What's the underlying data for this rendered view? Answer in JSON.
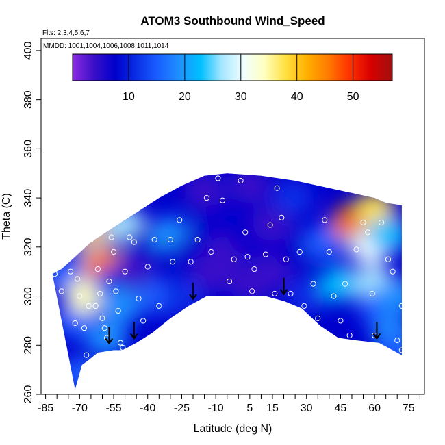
{
  "chart_data": {
    "type": "heatmap",
    "title": "ATOM3 Southbound Wind_Speed",
    "flights_label": "Flts: 2,3,4,5,6,7",
    "dates_label": "MMDD: 1001,1004,1006,1008,1011,1014",
    "xlabel": "Latitude (deg N)",
    "ylabel": "Theta (C)",
    "xlim": [
      -87,
      82
    ],
    "ylim": [
      260,
      405
    ],
    "x_ticks": [
      -85,
      -70,
      -55,
      -40,
      -25,
      -10,
      5,
      15,
      30,
      45,
      60,
      75
    ],
    "x_minor_ticks": [
      -80,
      -75,
      -65,
      -60,
      -50,
      -45,
      -35,
      -30,
      -20,
      -15,
      -5,
      0,
      10,
      20,
      25,
      35,
      40,
      50,
      55,
      65,
      70,
      80
    ],
    "y_ticks": [
      260,
      280,
      300,
      320,
      340,
      360,
      380,
      400
    ],
    "grid": false,
    "colorbar": {
      "range": [
        0,
        57
      ],
      "ticks": [
        10,
        20,
        30,
        40,
        50
      ],
      "colors": [
        "#8a2be2",
        "#3a0fc8",
        "#0000cd",
        "#0a2fe6",
        "#1a5fff",
        "#1e90ff",
        "#00bfff",
        "#a6e6ff",
        "#f0ffff",
        "#ffffc0",
        "#ffe040",
        "#ffb000",
        "#ff7a00",
        "#ff3000",
        "#d70000",
        "#a01010"
      ]
    },
    "profile_bottom": [
      [
        -72,
        262
      ],
      [
        -69,
        272
      ],
      [
        -66,
        274
      ],
      [
        -62,
        277
      ],
      [
        -55,
        278
      ],
      [
        -51,
        278
      ],
      [
        -45,
        281
      ],
      [
        -38,
        285
      ],
      [
        -30,
        291
      ],
      [
        -22,
        296
      ],
      [
        -14,
        300
      ],
      [
        0,
        300
      ],
      [
        12,
        300
      ],
      [
        20,
        298
      ],
      [
        28,
        295
      ],
      [
        36,
        288
      ],
      [
        44,
        283
      ],
      [
        52,
        282
      ],
      [
        62,
        281
      ],
      [
        72,
        276
      ]
    ],
    "profile_top": [
      [
        72,
        337
      ],
      [
        65,
        338
      ],
      [
        60,
        340
      ],
      [
        50,
        342
      ],
      [
        40,
        344
      ],
      [
        25,
        347
      ],
      [
        10,
        349
      ],
      [
        -5,
        350
      ],
      [
        -15,
        349
      ],
      [
        -25,
        345
      ],
      [
        -35,
        340
      ],
      [
        -45,
        334
      ],
      [
        -55,
        328
      ],
      [
        -65,
        322
      ],
      [
        -72,
        316
      ],
      [
        -78,
        311
      ],
      [
        -82,
        309
      ]
    ],
    "field_points": [
      {
        "lat": -82,
        "theta": 309,
        "speed": 12
      },
      {
        "lat": -75,
        "theta": 308,
        "speed": 14
      },
      {
        "lat": -72,
        "theta": 290,
        "speed": 15
      },
      {
        "lat": -70,
        "theta": 268,
        "speed": 14
      },
      {
        "lat": -67,
        "theta": 300,
        "speed": 35
      },
      {
        "lat": -65,
        "theta": 325,
        "speed": 40
      },
      {
        "lat": -62,
        "theta": 316,
        "speed": 22
      },
      {
        "lat": -60,
        "theta": 313,
        "speed": 44
      },
      {
        "lat": -58,
        "theta": 283,
        "speed": 20
      },
      {
        "lat": -55,
        "theta": 305,
        "speed": 12
      },
      {
        "lat": -52,
        "theta": 296,
        "speed": 18
      },
      {
        "lat": -50,
        "theta": 329,
        "speed": 25
      },
      {
        "lat": -46,
        "theta": 310,
        "speed": 2
      },
      {
        "lat": -40,
        "theta": 322,
        "speed": 9
      },
      {
        "lat": -35,
        "theta": 300,
        "speed": 14
      },
      {
        "lat": -30,
        "theta": 325,
        "speed": 20
      },
      {
        "lat": -25,
        "theta": 300,
        "speed": 10
      },
      {
        "lat": -20,
        "theta": 318,
        "speed": 6
      },
      {
        "lat": -15,
        "theta": 343,
        "speed": 4
      },
      {
        "lat": -10,
        "theta": 330,
        "speed": 8
      },
      {
        "lat": -12,
        "theta": 309,
        "speed": 3
      },
      {
        "lat": -5,
        "theta": 318,
        "speed": 3
      },
      {
        "lat": 5,
        "theta": 345,
        "speed": 2
      },
      {
        "lat": 5,
        "theta": 324,
        "speed": 6
      },
      {
        "lat": 5,
        "theta": 305,
        "speed": 5
      },
      {
        "lat": 15,
        "theta": 330,
        "speed": 4
      },
      {
        "lat": 15,
        "theta": 310,
        "speed": 3
      },
      {
        "lat": 24,
        "theta": 340,
        "speed": 10
      },
      {
        "lat": 25,
        "theta": 318,
        "speed": 6
      },
      {
        "lat": 30,
        "theta": 300,
        "speed": 12
      },
      {
        "lat": 38,
        "theta": 322,
        "speed": 14
      },
      {
        "lat": 45,
        "theta": 305,
        "speed": 24
      },
      {
        "lat": 50,
        "theta": 330,
        "speed": 45
      },
      {
        "lat": 56,
        "theta": 332,
        "speed": 55
      },
      {
        "lat": 60,
        "theta": 335,
        "speed": 38
      },
      {
        "lat": 58,
        "theta": 320,
        "speed": 30
      },
      {
        "lat": 60,
        "theta": 305,
        "speed": 28
      },
      {
        "lat": 62,
        "theta": 295,
        "speed": 16
      },
      {
        "lat": 66,
        "theta": 325,
        "speed": 22
      },
      {
        "lat": 68,
        "theta": 284,
        "speed": 18
      },
      {
        "lat": 70,
        "theta": 300,
        "speed": 20
      },
      {
        "lat": 72,
        "theta": 278,
        "speed": 14
      }
    ],
    "observations": [
      {
        "lat": -81,
        "theta": 309
      },
      {
        "lat": -78,
        "theta": 302
      },
      {
        "lat": -74,
        "theta": 310
      },
      {
        "lat": -72,
        "theta": 289
      },
      {
        "lat": -71,
        "theta": 307
      },
      {
        "lat": -70,
        "theta": 300
      },
      {
        "lat": -69,
        "theta": 266
      },
      {
        "lat": -68,
        "theta": 287
      },
      {
        "lat": -67,
        "theta": 276
      },
      {
        "lat": -66,
        "theta": 296
      },
      {
        "lat": -65,
        "theta": 323
      },
      {
        "lat": -64,
        "theta": 274
      },
      {
        "lat": -63,
        "theta": 296
      },
      {
        "lat": -62,
        "theta": 311
      },
      {
        "lat": -61,
        "theta": 301
      },
      {
        "lat": -60,
        "theta": 291
      },
      {
        "lat": -59,
        "theta": 287
      },
      {
        "lat": -58,
        "theta": 283
      },
      {
        "lat": -57,
        "theta": 306
      },
      {
        "lat": -56,
        "theta": 324
      },
      {
        "lat": -55,
        "theta": 318
      },
      {
        "lat": -54,
        "theta": 302
      },
      {
        "lat": -53,
        "theta": 294
      },
      {
        "lat": -52,
        "theta": 281
      },
      {
        "lat": -51,
        "theta": 279
      },
      {
        "lat": -50,
        "theta": 310
      },
      {
        "lat": -48,
        "theta": 324
      },
      {
        "lat": -46,
        "theta": 322
      },
      {
        "lat": -44,
        "theta": 299
      },
      {
        "lat": -42,
        "theta": 290
      },
      {
        "lat": -40,
        "theta": 312
      },
      {
        "lat": -37,
        "theta": 323
      },
      {
        "lat": -35,
        "theta": 296
      },
      {
        "lat": -30,
        "theta": 323
      },
      {
        "lat": -29,
        "theta": 314
      },
      {
        "lat": -26,
        "theta": 331
      },
      {
        "lat": -24,
        "theta": 293
      },
      {
        "lat": -21,
        "theta": 314
      },
      {
        "lat": -18,
        "theta": 323
      },
      {
        "lat": -14,
        "theta": 340
      },
      {
        "lat": -12,
        "theta": 318
      },
      {
        "lat": -9,
        "theta": 348
      },
      {
        "lat": -7,
        "theta": 339
      },
      {
        "lat": -4,
        "theta": 306
      },
      {
        "lat": -2,
        "theta": 315
      },
      {
        "lat": 1,
        "theta": 347
      },
      {
        "lat": 3,
        "theta": 326
      },
      {
        "lat": 4,
        "theta": 316
      },
      {
        "lat": 6,
        "theta": 302
      },
      {
        "lat": 7,
        "theta": 311
      },
      {
        "lat": 12,
        "theta": 317
      },
      {
        "lat": 14,
        "theta": 329
      },
      {
        "lat": 16,
        "theta": 301
      },
      {
        "lat": 17,
        "theta": 344
      },
      {
        "lat": 19,
        "theta": 332
      },
      {
        "lat": 21,
        "theta": 315
      },
      {
        "lat": 23,
        "theta": 301
      },
      {
        "lat": 27,
        "theta": 318
      },
      {
        "lat": 29,
        "theta": 296
      },
      {
        "lat": 33,
        "theta": 305
      },
      {
        "lat": 35,
        "theta": 291
      },
      {
        "lat": 38,
        "theta": 331
      },
      {
        "lat": 40,
        "theta": 318
      },
      {
        "lat": 42,
        "theta": 300
      },
      {
        "lat": 45,
        "theta": 290
      },
      {
        "lat": 47,
        "theta": 305
      },
      {
        "lat": 49,
        "theta": 284
      },
      {
        "lat": 52,
        "theta": 319
      },
      {
        "lat": 55,
        "theta": 330
      },
      {
        "lat": 57,
        "theta": 326
      },
      {
        "lat": 59,
        "theta": 301
      },
      {
        "lat": 60,
        "theta": 284
      },
      {
        "lat": 63,
        "theta": 330
      },
      {
        "lat": 66,
        "theta": 315
      },
      {
        "lat": 68,
        "theta": 310
      },
      {
        "lat": 70,
        "theta": 282
      },
      {
        "lat": 72,
        "theta": 296
      },
      {
        "lat": 72,
        "theta": 278
      }
    ],
    "arrows": [
      {
        "lat": -57,
        "theta": 283
      },
      {
        "lat": -46,
        "theta": 285
      },
      {
        "lat": -20,
        "theta": 301
      },
      {
        "lat": 20,
        "theta": 303
      },
      {
        "lat": 61,
        "theta": 285
      }
    ]
  }
}
